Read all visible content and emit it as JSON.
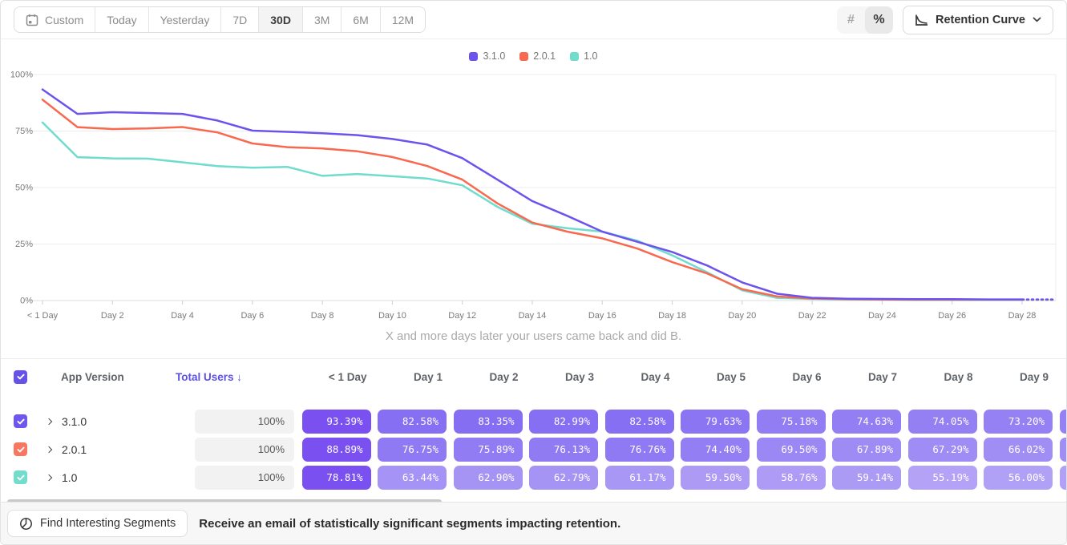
{
  "toolbar": {
    "ranges": [
      "Custom",
      "Today",
      "Yesterday",
      "7D",
      "30D",
      "3M",
      "6M",
      "12M"
    ],
    "selected_range": "30D",
    "format_toggle": {
      "count_icon": "#",
      "percent_icon": "%",
      "selected": "percent"
    },
    "chart_type": {
      "label": "Retention Curve"
    }
  },
  "chart_data": {
    "type": "line",
    "caption": "X and more days later your users came back and did B.",
    "xlabel": "",
    "ylabel": "",
    "ylim": [
      0,
      100
    ],
    "y_ticks": [
      "0%",
      "25%",
      "50%",
      "75%",
      "100%"
    ],
    "x_tick_days": [
      0,
      2,
      4,
      6,
      8,
      10,
      12,
      14,
      16,
      18,
      20,
      22,
      24,
      26,
      28
    ],
    "x_tick_labels": [
      "< 1 Day",
      "Day 2",
      "Day 4",
      "Day 6",
      "Day 8",
      "Day 10",
      "Day 12",
      "Day 14",
      "Day 16",
      "Day 18",
      "Day 20",
      "Day 22",
      "Day 24",
      "Day 26",
      "Day 28"
    ],
    "grid": true,
    "legend_position": "top-center",
    "dashed_projection_after_day": 28,
    "series": [
      {
        "name": "3.1.0",
        "color": "#6c53ec",
        "values": [
          93.39,
          82.58,
          83.35,
          82.99,
          82.58,
          79.63,
          75.18,
          74.63,
          74.05,
          73.2,
          71.5,
          69.0,
          63.0,
          53.5,
          44.0,
          37.5,
          30.5,
          26.0,
          21.5,
          15.5,
          8.0,
          3.0,
          1.2,
          0.8,
          0.7,
          0.6,
          0.6,
          0.5,
          0.5
        ]
      },
      {
        "name": "2.0.1",
        "color": "#f8694f",
        "values": [
          88.89,
          76.75,
          75.89,
          76.13,
          76.76,
          74.4,
          69.5,
          67.89,
          67.29,
          66.02,
          63.5,
          59.5,
          53.5,
          43.0,
          34.5,
          30.5,
          27.5,
          23.0,
          17.0,
          12.0,
          5.0,
          1.8,
          0.9,
          0.6,
          0.5,
          0.4,
          0.4,
          0.4,
          0.4
        ]
      },
      {
        "name": "1.0",
        "color": "#6fdccd",
        "values": [
          78.81,
          63.44,
          62.9,
          62.79,
          61.17,
          59.5,
          58.76,
          59.14,
          55.19,
          56.0,
          55.0,
          54.0,
          51.0,
          41.5,
          34.0,
          32.0,
          30.5,
          26.5,
          20.0,
          12.5,
          4.5,
          1.2,
          0.7,
          0.5,
          0.4,
          0.3,
          0.3,
          0.3,
          0.3
        ]
      }
    ]
  },
  "table": {
    "headers": {
      "app_version": "App Version",
      "total_users": "Total Users",
      "sort_arrow": "↓",
      "days": [
        "< 1 Day",
        "Day 1",
        "Day 2",
        "Day 3",
        "Day 4",
        "Day 5",
        "Day 6",
        "Day 7",
        "Day 8",
        "Day 9"
      ]
    },
    "rows": [
      {
        "name": "3.1.0",
        "color": "#6e56ee",
        "total_users": "100%",
        "cells": [
          "93.39%",
          "82.58%",
          "83.35%",
          "82.99%",
          "82.58%",
          "79.63%",
          "75.18%",
          "74.63%",
          "74.05%",
          "73.20%"
        ]
      },
      {
        "name": "2.0.1",
        "color": "#f87761",
        "total_users": "100%",
        "cells": [
          "88.89%",
          "76.75%",
          "75.89%",
          "76.13%",
          "76.76%",
          "74.40%",
          "69.50%",
          "67.89%",
          "67.29%",
          "66.02%"
        ]
      },
      {
        "name": "1.0",
        "color": "#72dccd",
        "total_users": "100%",
        "cells": [
          "78.81%",
          "63.44%",
          "62.90%",
          "62.79%",
          "61.17%",
          "59.50%",
          "58.76%",
          "59.14%",
          "55.19%",
          "56.00%"
        ]
      }
    ]
  },
  "footer": {
    "button_label": "Find Interesting Segments",
    "message": "Receive an email of statistically significant segments impacting retention."
  },
  "colors": {
    "accent": "#6552e8",
    "cell_day0": "#7a50f1",
    "cell_base": "#6a4ff0",
    "cell_light": "#c3b5f7",
    "grid_line": "#ececec",
    "axis_line": "#dedede",
    "axis_text": "#7a7a7a"
  }
}
